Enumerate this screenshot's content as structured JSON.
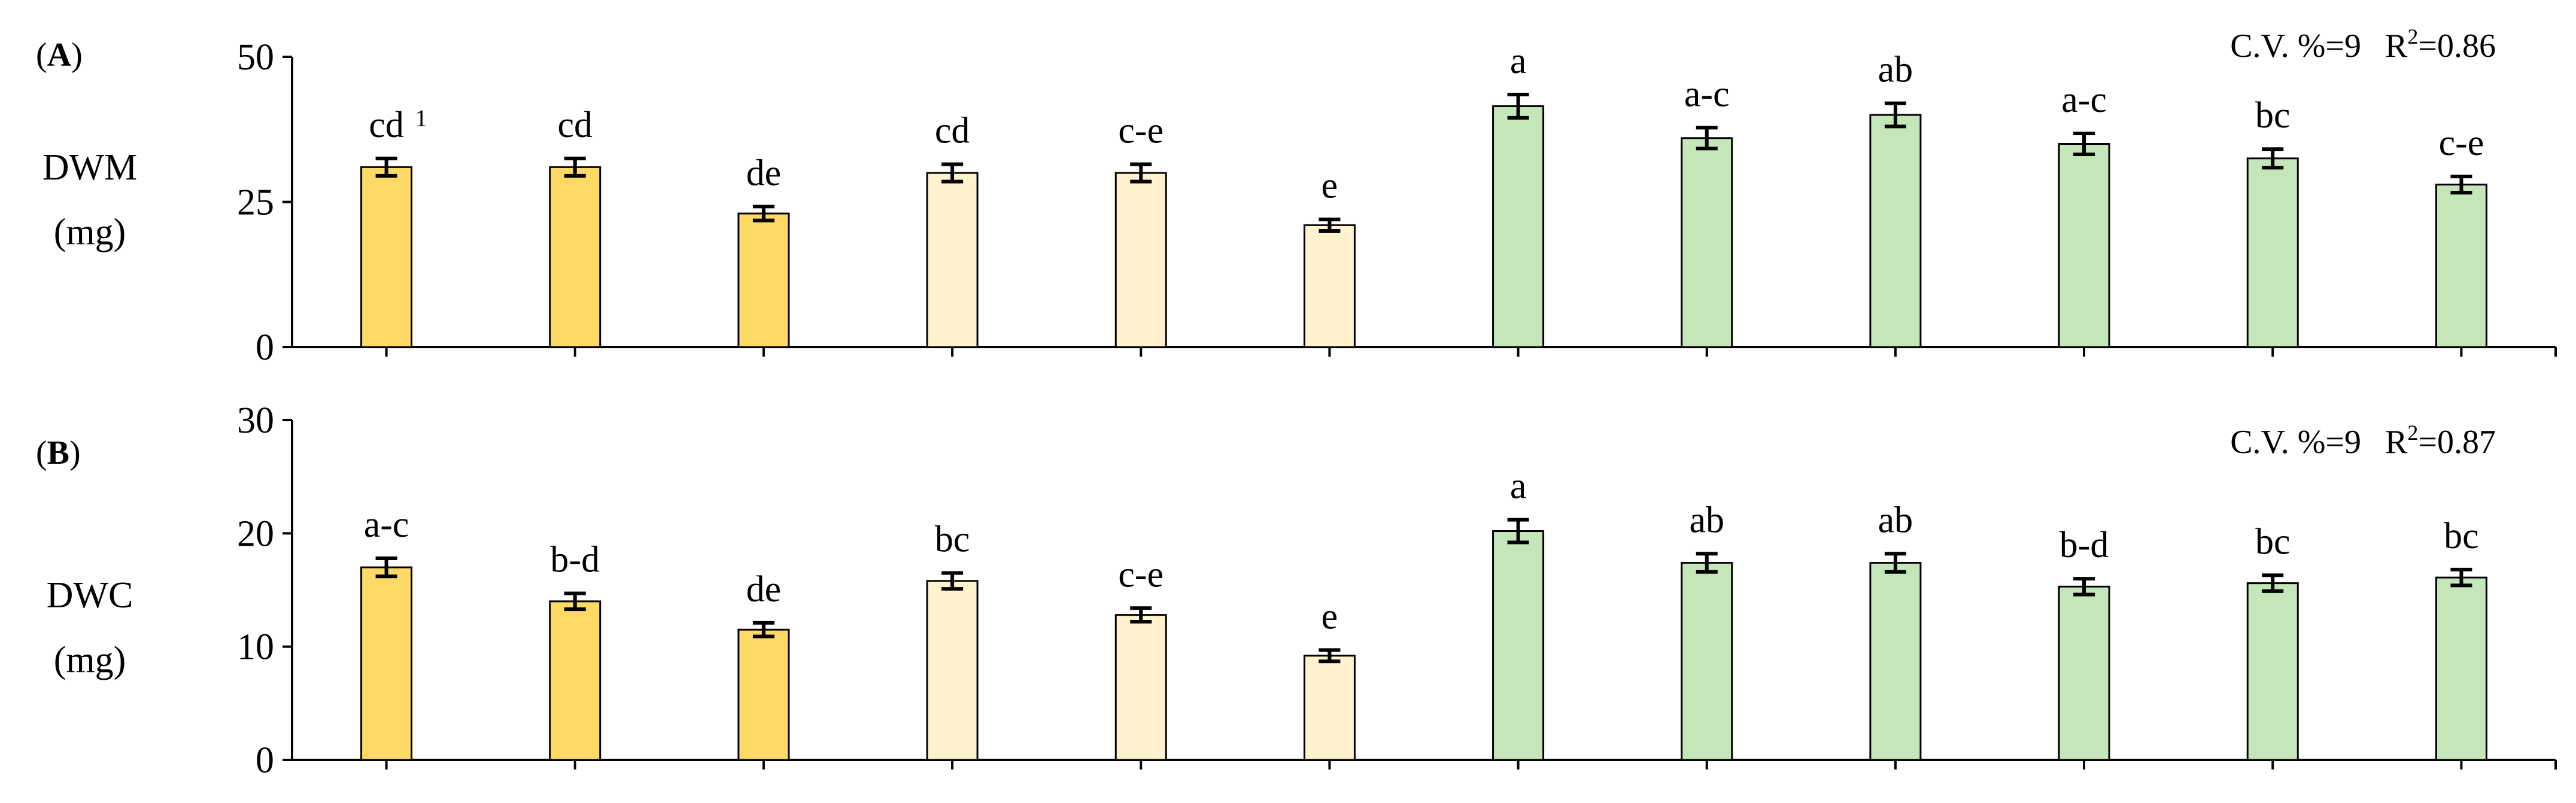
{
  "chart_data": [
    {
      "type": "bar",
      "panel_label_prefix": "(",
      "panel_label_letter": "A",
      "panel_label_suffix": ")",
      "ylabel_line1": "DWM",
      "ylabel_line2": "(mg)",
      "ylim": [
        0,
        50
      ],
      "yticks": [
        0,
        25,
        50
      ],
      "stats_cv": "C.V. %=9",
      "stats_r_base": "R",
      "stats_r_sup": "2",
      "stats_r_value": "=0.86",
      "footnote_marker": "1",
      "values": [
        31,
        31,
        23,
        30,
        30,
        21,
        41.5,
        36,
        40,
        35,
        32.5,
        28
      ],
      "errors": [
        1.5,
        1.5,
        1.2,
        1.5,
        1.5,
        1.0,
        2.0,
        1.8,
        2.0,
        1.8,
        1.6,
        1.4
      ],
      "letters": [
        "cd",
        "cd",
        "de",
        "cd",
        "c-e",
        "e",
        "a",
        "a-c",
        "ab",
        "a-c",
        "bc",
        "c-e"
      ],
      "colors": [
        "#FFD966",
        "#FFD966",
        "#FFD966",
        "#FFF2CC",
        "#FFF2CC",
        "#FFF2CC",
        "#C5E6B8",
        "#C5E6B8",
        "#C5E6B8",
        "#C5E6B8",
        "#C5E6B8",
        "#C5E6B8"
      ]
    },
    {
      "type": "bar",
      "panel_label_prefix": "(",
      "panel_label_letter": "B",
      "panel_label_suffix": ")",
      "ylabel_line1": "DWC",
      "ylabel_line2": "(mg)",
      "ylim": [
        0,
        30
      ],
      "yticks": [
        0,
        10,
        20,
        30
      ],
      "stats_cv": "C.V. %=9",
      "stats_r_base": "R",
      "stats_r_sup": "2",
      "stats_r_value": "=0.87",
      "values": [
        17,
        14,
        11.5,
        15.8,
        12.8,
        9.2,
        20.2,
        17.4,
        17.4,
        15.3,
        15.6,
        16.1
      ],
      "errors": [
        0.8,
        0.7,
        0.6,
        0.7,
        0.6,
        0.5,
        1.0,
        0.8,
        0.8,
        0.7,
        0.7,
        0.7
      ],
      "letters": [
        "a-c",
        "b-d",
        "de",
        "bc",
        "c-e",
        "e",
        "a",
        "ab",
        "ab",
        "b-d",
        "bc",
        "bc"
      ],
      "colors": [
        "#FFD966",
        "#FFD966",
        "#FFD966",
        "#FFF2CC",
        "#FFF2CC",
        "#FFF2CC",
        "#C5E6B8",
        "#C5E6B8",
        "#C5E6B8",
        "#C5E6B8",
        "#C5E6B8",
        "#C5E6B8"
      ]
    }
  ]
}
